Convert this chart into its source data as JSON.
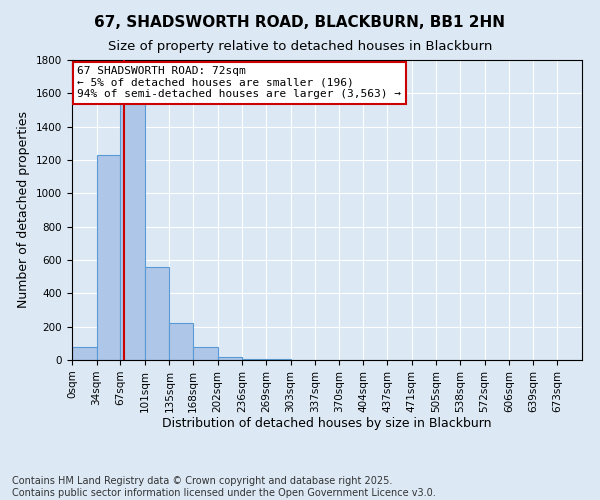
{
  "title": "67, SHADSWORTH ROAD, BLACKBURN, BB1 2HN",
  "subtitle": "Size of property relative to detached houses in Blackburn",
  "xlabel": "Distribution of detached houses by size in Blackburn",
  "ylabel": "Number of detached properties",
  "footnote1": "Contains HM Land Registry data © Crown copyright and database right 2025.",
  "footnote2": "Contains public sector information licensed under the Open Government Licence v3.0.",
  "annotation_line1": "67 SHADSWORTH ROAD: 72sqm",
  "annotation_line2": "← 5% of detached houses are smaller (196)",
  "annotation_line3": "94% of semi-detached houses are larger (3,563) →",
  "bin_labels": [
    "0sqm",
    "34sqm",
    "67sqm",
    "101sqm",
    "135sqm",
    "168sqm",
    "202sqm",
    "236sqm",
    "269sqm",
    "303sqm",
    "337sqm",
    "370sqm",
    "404sqm",
    "437sqm",
    "471sqm",
    "505sqm",
    "538sqm",
    "572sqm",
    "606sqm",
    "639sqm",
    "673sqm"
  ],
  "bar_values": [
    80,
    1230,
    1640,
    560,
    220,
    80,
    20,
    8,
    5,
    3,
    2,
    1,
    1,
    1,
    0,
    0,
    0,
    0,
    0,
    0,
    0
  ],
  "bar_color": "#aec6e8",
  "bar_edge_color": "#5b9bd5",
  "property_line_x": 72,
  "bin_start_values": [
    0,
    34,
    67,
    101,
    135,
    168,
    202,
    236,
    269,
    303,
    337,
    370,
    404,
    437,
    471,
    505,
    538,
    572,
    606,
    639,
    673
  ],
  "ylim": [
    0,
    1800
  ],
  "yticks": [
    0,
    200,
    400,
    600,
    800,
    1000,
    1200,
    1400,
    1600,
    1800
  ],
  "red_line_color": "#cc0000",
  "annotation_box_color": "#ffffff",
  "annotation_box_edge": "#cc0000",
  "background_color": "#dce9f5",
  "plot_bg_color": "#dce9f5",
  "title_fontsize": 11,
  "subtitle_fontsize": 9.5,
  "axis_label_fontsize": 9,
  "tick_fontsize": 7.5,
  "annotation_fontsize": 8,
  "footnote_fontsize": 7
}
